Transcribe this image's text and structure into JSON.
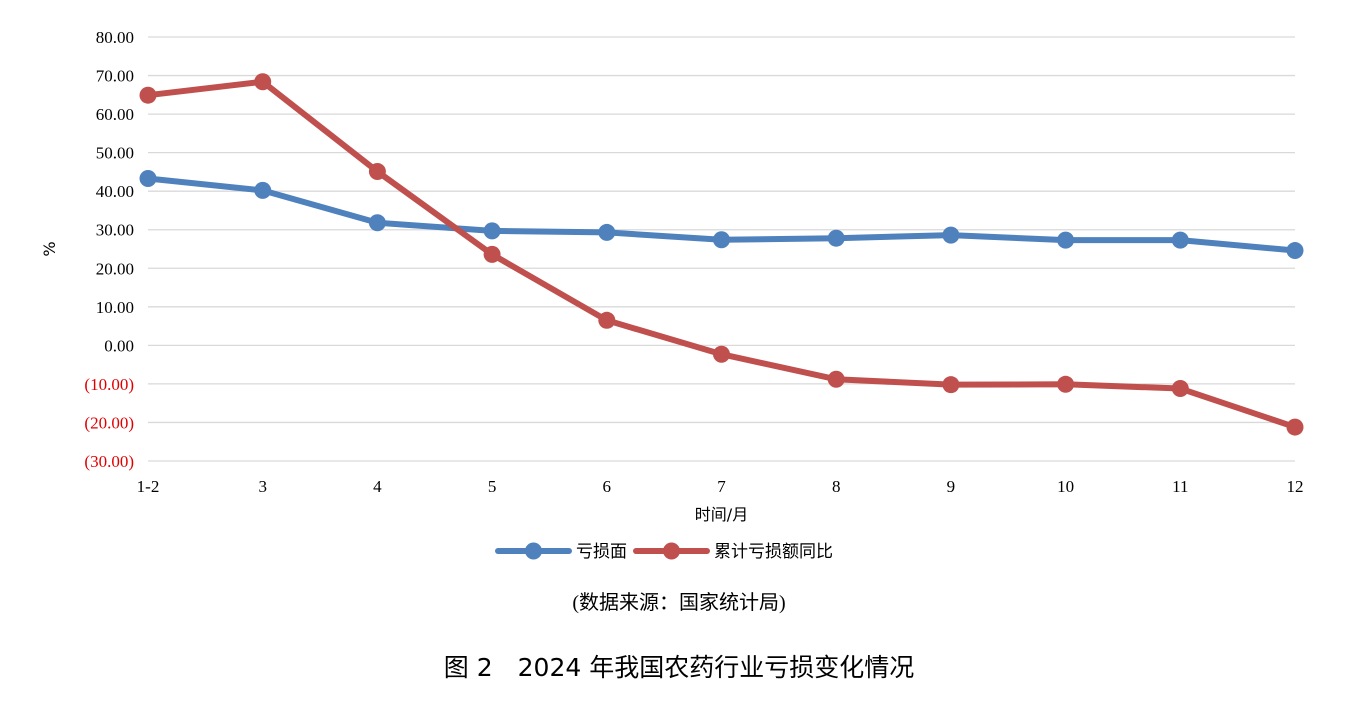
{
  "chart_data": {
    "type": "line",
    "categories": [
      "1-2",
      "3",
      "4",
      "5",
      "6",
      "7",
      "8",
      "9",
      "10",
      "11",
      "12"
    ],
    "series": [
      {
        "name": "亏损面",
        "color": "#4f81bd",
        "values": [
          43.3,
          40.2,
          31.8,
          29.7,
          29.3,
          27.4,
          27.8,
          28.6,
          27.3,
          27.3,
          24.6
        ]
      },
      {
        "name": "累计亏损额同比",
        "color": "#c0504d",
        "values": [
          64.9,
          68.4,
          45.1,
          23.6,
          6.5,
          -2.3,
          -8.8,
          -10.2,
          -10.1,
          -11.2,
          -21.2
        ]
      }
    ],
    "yticks": [
      "80.00",
      "70.00",
      "60.00",
      "50.00",
      "40.00",
      "30.00",
      "20.00",
      "10.00",
      "0.00",
      "(10.00)",
      "(20.00)",
      "(30.00)"
    ],
    "ylim": [
      -30,
      80
    ],
    "ylabel": "%",
    "xlabel": "时间/月",
    "negative_tick_color": "#e00000",
    "grid": true,
    "legend_position": "bottom"
  },
  "source_note": "(数据来源：国家统计局)",
  "caption": "图 2　2024 年我国农药行业亏损变化情况"
}
